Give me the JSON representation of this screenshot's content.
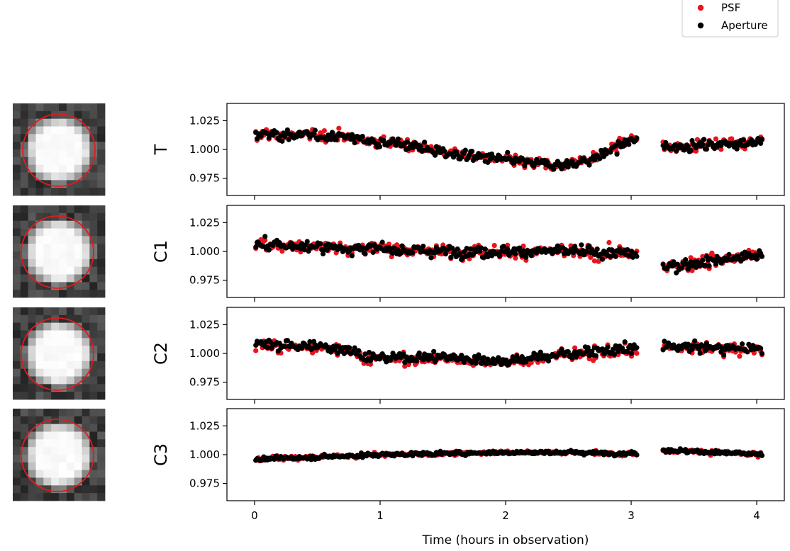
{
  "legend": {
    "entries": [
      {
        "label": "PSF",
        "color": "#e8141e"
      },
      {
        "label": "Aperture",
        "color": "#000000"
      }
    ]
  },
  "chart_data": {
    "type": "scatter",
    "xlabel": "Time (hours in observation)",
    "xlim": [
      -0.22,
      4.22
    ],
    "x_ticks": [
      0,
      1,
      2,
      3,
      4
    ],
    "ylim": [
      0.96,
      1.04
    ],
    "y_ticks": [
      0.975,
      1.0,
      1.025
    ],
    "y_tick_labels": [
      "0.975",
      "1.000",
      "1.025"
    ],
    "legend_position": "top-right",
    "colors": {
      "PSF": "#e8141e",
      "Aperture": "#000000"
    },
    "gap": [
      3.05,
      3.25
    ],
    "panels": [
      {
        "label": "T",
        "image_icon": "target-star-aperture-image",
        "trend_knots": [
          [
            0.0,
            1.013
          ],
          [
            0.5,
            1.012
          ],
          [
            0.75,
            1.011
          ],
          [
            1.0,
            1.006
          ],
          [
            1.25,
            1.004
          ],
          [
            1.5,
            0.997
          ],
          [
            1.75,
            0.994
          ],
          [
            2.0,
            0.991
          ],
          [
            2.2,
            0.988
          ],
          [
            2.45,
            0.986
          ],
          [
            2.7,
            0.992
          ],
          [
            3.0,
            1.008
          ],
          [
            3.27,
            1.002
          ],
          [
            3.6,
            1.004
          ],
          [
            4.05,
            1.007
          ]
        ],
        "noise": 0.008,
        "red_offset": 0.0
      },
      {
        "label": "C1",
        "image_icon": "comparison-star-1-aperture-image",
        "trend_knots": [
          [
            0.0,
            1.006
          ],
          [
            0.5,
            1.004
          ],
          [
            1.0,
            1.002
          ],
          [
            1.5,
            1.0
          ],
          [
            2.0,
            1.0
          ],
          [
            2.5,
            1.0
          ],
          [
            3.0,
            0.998
          ],
          [
            3.27,
            0.986
          ],
          [
            3.5,
            0.99
          ],
          [
            4.05,
            0.997
          ]
        ],
        "noise": 0.009,
        "red_offset": 0.0
      },
      {
        "label": "C2",
        "image_icon": "comparison-star-2-aperture-image",
        "trend_knots": [
          [
            0.0,
            1.008
          ],
          [
            0.5,
            1.006
          ],
          [
            0.75,
            1.004
          ],
          [
            0.9,
            0.996
          ],
          [
            1.5,
            0.997
          ],
          [
            2.0,
            0.993
          ],
          [
            2.5,
            1.0
          ],
          [
            3.0,
            1.004
          ],
          [
            3.27,
            1.006
          ],
          [
            4.05,
            1.004
          ]
        ],
        "noise": 0.008,
        "red_offset": -0.001
      },
      {
        "label": "C3",
        "image_icon": "comparison-star-3-aperture-image",
        "trend_knots": [
          [
            0.0,
            0.996
          ],
          [
            0.5,
            0.998
          ],
          [
            1.0,
            1.0
          ],
          [
            1.5,
            1.001
          ],
          [
            2.0,
            1.002
          ],
          [
            2.5,
            1.002
          ],
          [
            3.0,
            1.001
          ],
          [
            3.27,
            1.004
          ],
          [
            4.05,
            1.0
          ]
        ],
        "noise": 0.003,
        "red_offset": 0.0
      }
    ],
    "x_tick_labels": [
      "0",
      "1",
      "2",
      "3",
      "4"
    ]
  }
}
